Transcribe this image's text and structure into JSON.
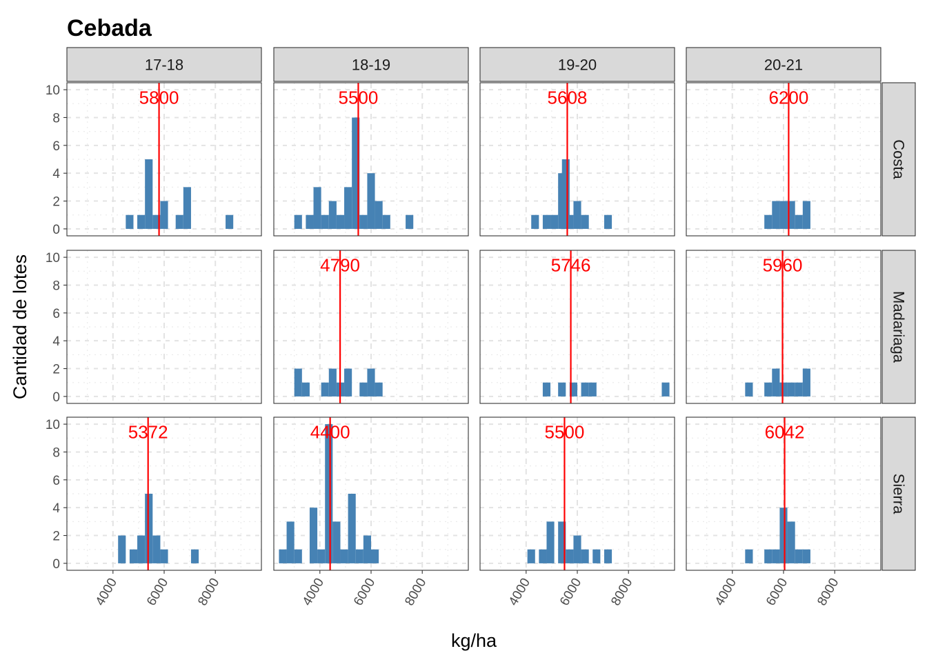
{
  "chart_data": {
    "type": "histogram",
    "title": "Cebada",
    "xlabel": "kg/ha",
    "ylabel": "Cantidad de lotes",
    "columns": [
      "17-18",
      "18-19",
      "19-20",
      "20-21"
    ],
    "rows": [
      "Costa",
      "Madariaga",
      "Sierra"
    ],
    "xlim": [
      2200,
      9800
    ],
    "xticks": [
      4000,
      6000,
      8000
    ],
    "ylim": [
      -0.5,
      10.5
    ],
    "yticks": [
      0,
      2,
      4,
      6,
      8,
      10
    ],
    "bin_width": 300,
    "bar_color": "#4682b4",
    "median_color": "#ff0000",
    "grid": true,
    "panels": [
      {
        "column": "17-18",
        "row": "Costa",
        "median": 5800,
        "median_label": "5800",
        "bins": [
          [
            4650,
            1
          ],
          [
            5100,
            1
          ],
          [
            5400,
            5
          ],
          [
            5700,
            1
          ],
          [
            6000,
            2
          ],
          [
            6600,
            1
          ],
          [
            6900,
            3
          ],
          [
            8550,
            1
          ]
        ]
      },
      {
        "column": "18-19",
        "row": "Costa",
        "median": 5500,
        "median_label": "5500",
        "bins": [
          [
            3150,
            1
          ],
          [
            3600,
            1
          ],
          [
            3900,
            3
          ],
          [
            4200,
            1
          ],
          [
            4500,
            2
          ],
          [
            4800,
            1
          ],
          [
            5100,
            3
          ],
          [
            5400,
            8
          ],
          [
            5700,
            1
          ],
          [
            6000,
            4
          ],
          [
            6300,
            2
          ],
          [
            6600,
            1
          ],
          [
            7500,
            1
          ]
        ]
      },
      {
        "column": "19-20",
        "row": "Costa",
        "median": 5608,
        "median_label": "5608",
        "bins": [
          [
            4350,
            1
          ],
          [
            4800,
            1
          ],
          [
            5100,
            1
          ],
          [
            5400,
            4
          ],
          [
            5550,
            5
          ],
          [
            5700,
            1
          ],
          [
            6000,
            2
          ],
          [
            6300,
            1
          ],
          [
            7200,
            1
          ]
        ]
      },
      {
        "column": "20-21",
        "row": "Costa",
        "median": 6200,
        "median_label": "6200",
        "bins": [
          [
            5400,
            1
          ],
          [
            5700,
            2
          ],
          [
            6000,
            2
          ],
          [
            6300,
            2
          ],
          [
            6600,
            1
          ],
          [
            6900,
            2
          ]
        ]
      },
      {
        "column": "17-18",
        "row": "Madariaga",
        "bins": []
      },
      {
        "column": "18-19",
        "row": "Madariaga",
        "median": 4790,
        "median_label": "4790",
        "bins": [
          [
            3150,
            2
          ],
          [
            3450,
            1
          ],
          [
            4200,
            1
          ],
          [
            4500,
            2
          ],
          [
            4800,
            1
          ],
          [
            5100,
            2
          ],
          [
            5700,
            1
          ],
          [
            6000,
            2
          ],
          [
            6300,
            1
          ]
        ]
      },
      {
        "column": "19-20",
        "row": "Madariaga",
        "median": 5746,
        "median_label": "5746",
        "bins": [
          [
            4800,
            1
          ],
          [
            5400,
            1
          ],
          [
            5850,
            1
          ],
          [
            6300,
            1
          ],
          [
            6600,
            1
          ],
          [
            9450,
            1
          ]
        ]
      },
      {
        "column": "20-21",
        "row": "Madariaga",
        "median": 5960,
        "median_label": "5960",
        "bins": [
          [
            4650,
            1
          ],
          [
            5400,
            1
          ],
          [
            5700,
            2
          ],
          [
            6000,
            1
          ],
          [
            6300,
            1
          ],
          [
            6600,
            1
          ],
          [
            6900,
            2
          ]
        ]
      },
      {
        "column": "17-18",
        "row": "Sierra",
        "median": 5372,
        "median_label": "5372",
        "bins": [
          [
            4350,
            2
          ],
          [
            4800,
            1
          ],
          [
            5100,
            2
          ],
          [
            5400,
            5
          ],
          [
            5700,
            2
          ],
          [
            6000,
            1
          ],
          [
            7200,
            1
          ]
        ]
      },
      {
        "column": "18-19",
        "row": "Sierra",
        "median": 4400,
        "median_label": "4400",
        "bins": [
          [
            2550,
            1
          ],
          [
            2850,
            3
          ],
          [
            3150,
            1
          ],
          [
            3750,
            4
          ],
          [
            4050,
            1
          ],
          [
            4350,
            10
          ],
          [
            4650,
            3
          ],
          [
            4950,
            1
          ],
          [
            5250,
            5
          ],
          [
            5550,
            1
          ],
          [
            5850,
            2
          ],
          [
            6150,
            1
          ]
        ]
      },
      {
        "column": "19-20",
        "row": "Sierra",
        "median": 5500,
        "median_label": "5500",
        "bins": [
          [
            4200,
            1
          ],
          [
            4650,
            1
          ],
          [
            4950,
            3
          ],
          [
            5400,
            3
          ],
          [
            5700,
            1
          ],
          [
            6000,
            2
          ],
          [
            6300,
            1
          ],
          [
            6750,
            1
          ],
          [
            7200,
            1
          ]
        ]
      },
      {
        "column": "20-21",
        "row": "Sierra",
        "median": 6042,
        "median_label": "6042",
        "bins": [
          [
            4650,
            1
          ],
          [
            5400,
            1
          ],
          [
            5700,
            1
          ],
          [
            6000,
            4
          ],
          [
            6300,
            3
          ],
          [
            6600,
            1
          ],
          [
            6900,
            1
          ]
        ]
      }
    ]
  }
}
